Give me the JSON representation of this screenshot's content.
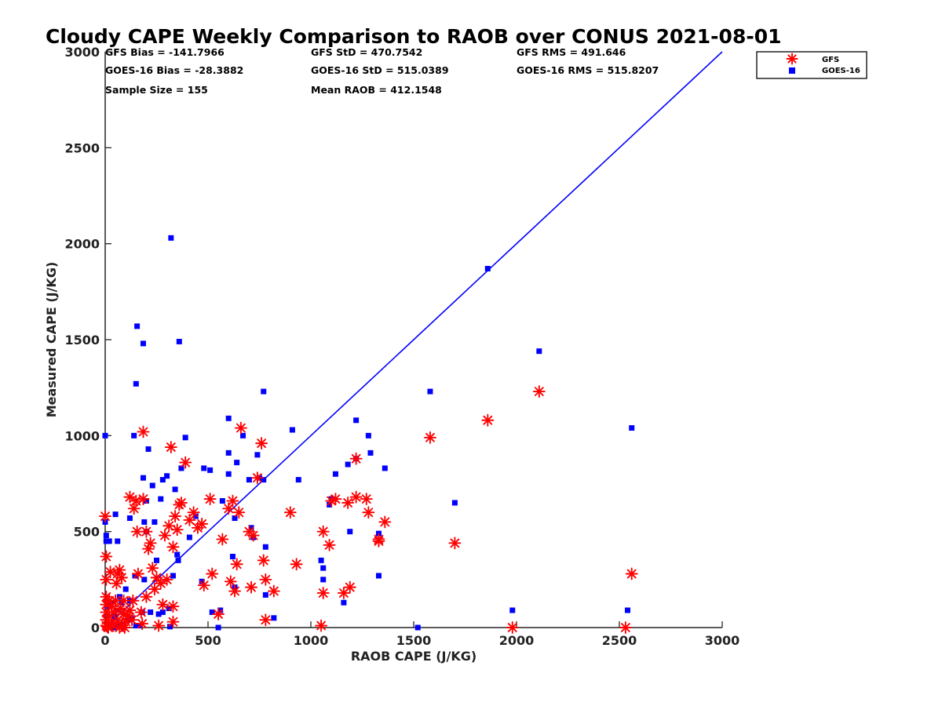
{
  "title": "Cloudy CAPE Weekly Comparison to RAOB over CONUS 2021-08-01",
  "stats": {
    "gfs_bias": "GFS Bias = -141.7966",
    "gfs_std": "GFS StD = 470.7542",
    "gfs_rms": "GFS RMS = 491.646",
    "goes_bias": "GOES-16 Bias = -28.3882",
    "goes_std": "GOES-16 StD = 515.0389",
    "goes_rms": "GOES-16 RMS = 515.8207",
    "sample_size": "Sample Size = 155",
    "mean_raob": "Mean RAOB = 412.1548"
  },
  "colors": {
    "gfs": "#ff0000",
    "goes": "#0000ff",
    "one_to_one": "#0000ff"
  },
  "chart_data": {
    "type": "scatter",
    "title": "Cloudy CAPE Weekly Comparison to RAOB over CONUS 2021-08-01",
    "xlabel": "RAOB CAPE (J/KG)",
    "ylabel": "Measured CAPE (J/KG)",
    "xlim": [
      0,
      3000
    ],
    "ylim": [
      0,
      3000
    ],
    "xticks": [
      "0",
      "500",
      "1000",
      "1500",
      "2000",
      "2500",
      "3000"
    ],
    "yticks": [
      "0",
      "500",
      "1000",
      "1500",
      "2000",
      "2500",
      "3000"
    ],
    "grid": false,
    "legend_position": "top-right",
    "reference_line": {
      "x": [
        0,
        3000
      ],
      "y": [
        0,
        3000
      ]
    },
    "series": [
      {
        "name": "GFS",
        "marker": "asterisk",
        "points": [
          [
            0,
            580
          ],
          [
            5,
            370
          ],
          [
            5,
            250
          ],
          [
            5,
            160
          ],
          [
            5,
            120
          ],
          [
            5,
            80
          ],
          [
            5,
            40
          ],
          [
            5,
            10
          ],
          [
            10,
            5
          ],
          [
            15,
            0
          ],
          [
            20,
            140
          ],
          [
            20,
            60
          ],
          [
            25,
            290
          ],
          [
            30,
            110
          ],
          [
            30,
            20
          ],
          [
            40,
            10
          ],
          [
            45,
            80
          ],
          [
            50,
            140
          ],
          [
            55,
            230
          ],
          [
            60,
            280
          ],
          [
            60,
            40
          ],
          [
            70,
            300
          ],
          [
            70,
            0
          ],
          [
            75,
            100
          ],
          [
            80,
            260
          ],
          [
            80,
            10
          ],
          [
            90,
            70
          ],
          [
            90,
            140
          ],
          [
            95,
            0
          ],
          [
            100,
            30
          ],
          [
            110,
            60
          ],
          [
            120,
            90
          ],
          [
            120,
            680
          ],
          [
            130,
            40
          ],
          [
            135,
            140
          ],
          [
            140,
            620
          ],
          [
            150,
            660
          ],
          [
            155,
            500
          ],
          [
            160,
            280
          ],
          [
            175,
            80
          ],
          [
            180,
            20
          ],
          [
            185,
            1020
          ],
          [
            185,
            670
          ],
          [
            200,
            500
          ],
          [
            200,
            160
          ],
          [
            210,
            410
          ],
          [
            220,
            440
          ],
          [
            230,
            310
          ],
          [
            240,
            200
          ],
          [
            250,
            260
          ],
          [
            260,
            10
          ],
          [
            270,
            230
          ],
          [
            280,
            120
          ],
          [
            290,
            480
          ],
          [
            300,
            250
          ],
          [
            310,
            530
          ],
          [
            320,
            940
          ],
          [
            330,
            110
          ],
          [
            330,
            420
          ],
          [
            330,
            30
          ],
          [
            340,
            580
          ],
          [
            350,
            510
          ],
          [
            360,
            640
          ],
          [
            370,
            650
          ],
          [
            390,
            860
          ],
          [
            410,
            560
          ],
          [
            430,
            600
          ],
          [
            450,
            520
          ],
          [
            470,
            540
          ],
          [
            480,
            220
          ],
          [
            510,
            670
          ],
          [
            520,
            280
          ],
          [
            550,
            70
          ],
          [
            570,
            460
          ],
          [
            600,
            620
          ],
          [
            610,
            240
          ],
          [
            620,
            660
          ],
          [
            630,
            190
          ],
          [
            640,
            330
          ],
          [
            650,
            600
          ],
          [
            660,
            1040
          ],
          [
            700,
            500
          ],
          [
            710,
            210
          ],
          [
            720,
            480
          ],
          [
            740,
            780
          ],
          [
            760,
            960
          ],
          [
            770,
            350
          ],
          [
            780,
            40
          ],
          [
            780,
            250
          ],
          [
            820,
            190
          ],
          [
            900,
            600
          ],
          [
            930,
            330
          ],
          [
            1050,
            10
          ],
          [
            1060,
            500
          ],
          [
            1060,
            180
          ],
          [
            1090,
            430
          ],
          [
            1100,
            660
          ],
          [
            1120,
            670
          ],
          [
            1160,
            180
          ],
          [
            1180,
            650
          ],
          [
            1190,
            210
          ],
          [
            1220,
            680
          ],
          [
            1220,
            880
          ],
          [
            1270,
            670
          ],
          [
            1280,
            600
          ],
          [
            1330,
            460
          ],
          [
            1330,
            450
          ],
          [
            1360,
            550
          ],
          [
            1580,
            990
          ],
          [
            1860,
            1080
          ],
          [
            1700,
            440
          ],
          [
            1980,
            0
          ],
          [
            2110,
            1230
          ],
          [
            2530,
            0
          ],
          [
            2560,
            280
          ]
        ]
      },
      {
        "name": "GOES-16",
        "marker": "square",
        "points": [
          [
            0,
            1000
          ],
          [
            0,
            550
          ],
          [
            5,
            480
          ],
          [
            5,
            450
          ],
          [
            10,
            110
          ],
          [
            10,
            60
          ],
          [
            15,
            10
          ],
          [
            20,
            450
          ],
          [
            20,
            5
          ],
          [
            30,
            130
          ],
          [
            40,
            0
          ],
          [
            45,
            60
          ],
          [
            50,
            590
          ],
          [
            55,
            10
          ],
          [
            60,
            450
          ],
          [
            60,
            90
          ],
          [
            70,
            160
          ],
          [
            75,
            20
          ],
          [
            80,
            130
          ],
          [
            90,
            0
          ],
          [
            100,
            200
          ],
          [
            110,
            40
          ],
          [
            120,
            140
          ],
          [
            120,
            570
          ],
          [
            130,
            50
          ],
          [
            140,
            1000
          ],
          [
            145,
            270
          ],
          [
            150,
            1270
          ],
          [
            150,
            10
          ],
          [
            155,
            1570
          ],
          [
            170,
            10
          ],
          [
            180,
            80
          ],
          [
            185,
            780
          ],
          [
            185,
            1480
          ],
          [
            190,
            250
          ],
          [
            190,
            550
          ],
          [
            200,
            660
          ],
          [
            200,
            500
          ],
          [
            210,
            930
          ],
          [
            220,
            80
          ],
          [
            230,
            740
          ],
          [
            240,
            550
          ],
          [
            250,
            350
          ],
          [
            260,
            70
          ],
          [
            270,
            670
          ],
          [
            280,
            80
          ],
          [
            280,
            770
          ],
          [
            300,
            790
          ],
          [
            310,
            100
          ],
          [
            315,
            5
          ],
          [
            320,
            2030
          ],
          [
            330,
            270
          ],
          [
            340,
            720
          ],
          [
            350,
            380
          ],
          [
            355,
            350
          ],
          [
            360,
            1490
          ],
          [
            370,
            830
          ],
          [
            390,
            990
          ],
          [
            410,
            470
          ],
          [
            440,
            580
          ],
          [
            470,
            240
          ],
          [
            480,
            830
          ],
          [
            510,
            820
          ],
          [
            520,
            80
          ],
          [
            550,
            0
          ],
          [
            560,
            90
          ],
          [
            570,
            660
          ],
          [
            600,
            1090
          ],
          [
            600,
            910
          ],
          [
            600,
            800
          ],
          [
            620,
            370
          ],
          [
            630,
            210
          ],
          [
            630,
            570
          ],
          [
            640,
            860
          ],
          [
            670,
            1000
          ],
          [
            700,
            770
          ],
          [
            710,
            520
          ],
          [
            720,
            470
          ],
          [
            740,
            900
          ],
          [
            750,
            780
          ],
          [
            770,
            770
          ],
          [
            770,
            1230
          ],
          [
            780,
            420
          ],
          [
            780,
            170
          ],
          [
            820,
            50
          ],
          [
            910,
            1030
          ],
          [
            940,
            770
          ],
          [
            1050,
            350
          ],
          [
            1060,
            310
          ],
          [
            1060,
            250
          ],
          [
            1090,
            640
          ],
          [
            1100,
            670
          ],
          [
            1120,
            800
          ],
          [
            1160,
            130
          ],
          [
            1180,
            850
          ],
          [
            1190,
            500
          ],
          [
            1220,
            1080
          ],
          [
            1220,
            880
          ],
          [
            1280,
            1000
          ],
          [
            1290,
            910
          ],
          [
            1330,
            270
          ],
          [
            1330,
            490
          ],
          [
            1360,
            830
          ],
          [
            1520,
            0
          ],
          [
            1580,
            1230
          ],
          [
            1700,
            650
          ],
          [
            1860,
            1870
          ],
          [
            1980,
            90
          ],
          [
            2110,
            1440
          ],
          [
            2540,
            90
          ],
          [
            2560,
            1040
          ]
        ]
      }
    ]
  }
}
